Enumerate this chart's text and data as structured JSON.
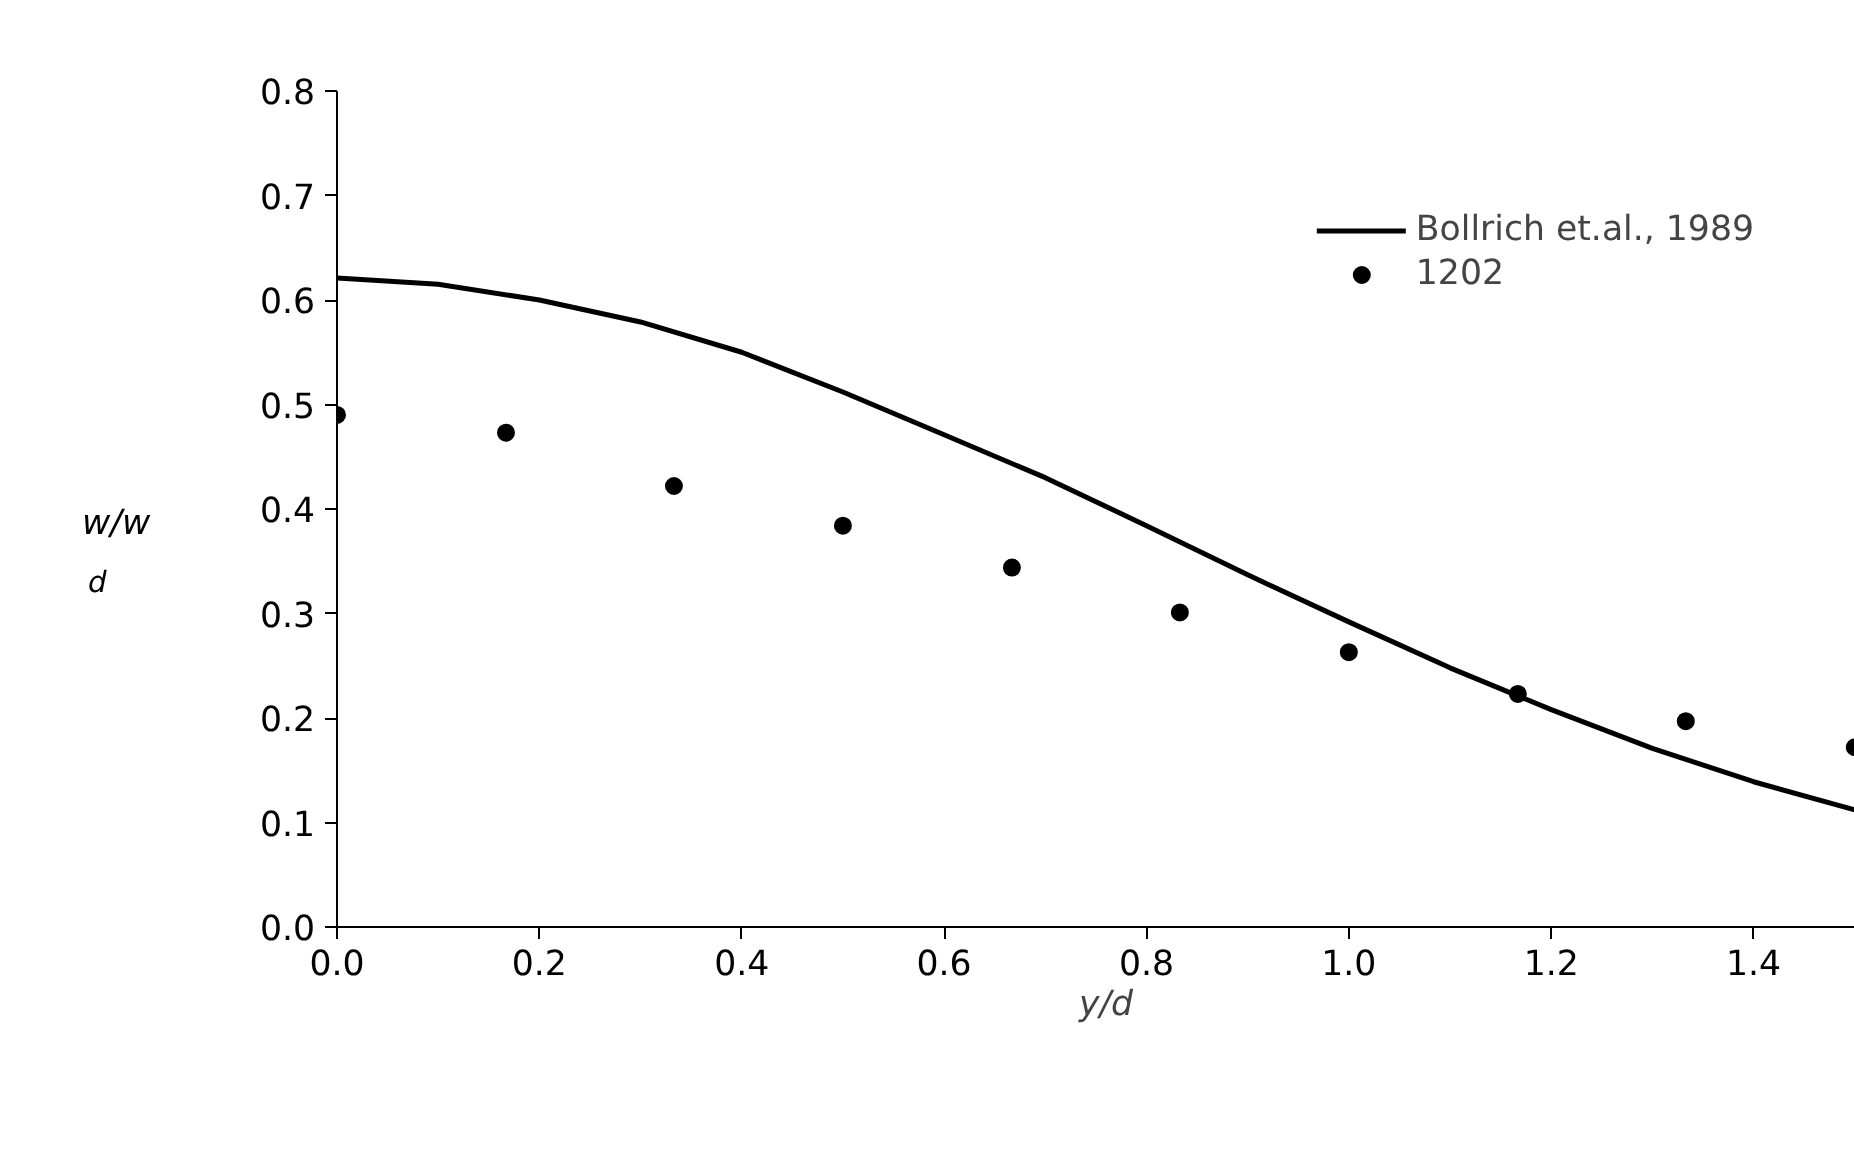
{
  "chart_data": {
    "type": "line",
    "xlabel": "y/d",
    "ylabel": "w/w$_{d}$",
    "xlim": [
      0,
      1.52
    ],
    "ylim": [
      0,
      0.8
    ],
    "xticks": [
      {
        "value": 0,
        "label": "0.0"
      },
      0.2,
      0.4,
      0.6,
      0.8,
      {
        "value": 1,
        "label": "1.0"
      },
      1.2,
      1.4
    ],
    "yticks": [
      {
        "value": 0,
        "label": "0.0"
      },
      0.1,
      0.2,
      0.3,
      0.4,
      0.5,
      0.6,
      0.7,
      0.8
    ],
    "grid": false,
    "legend": "top right",
    "series": [
      {
        "name": "Bollrich et.al., 1989",
        "color": "#000000",
        "line_style": "solid",
        "x": [
          0,
          0.1,
          0.2,
          0.3,
          0.4,
          0.5,
          0.6,
          0.7,
          0.8,
          0.9,
          1.0,
          1.1,
          1.2,
          1.3,
          1.4,
          1.5
        ],
        "values": [
          0.621,
          0.615,
          0.6,
          0.579,
          0.55,
          0.512,
          0.471,
          0.43,
          0.384,
          0.337,
          0.292,
          0.248,
          0.208,
          0.171,
          0.139,
          0.112
        ]
      },
      {
        "name": "1202",
        "type": "scatter",
        "color": "#000000",
        "marker": "circle",
        "x": [
          0,
          0.167,
          0.333,
          0.5,
          0.667,
          0.833,
          1.0,
          1.167,
          1.333,
          1.5
        ],
        "values": [
          0.49,
          0.473,
          0.422,
          0.384,
          0.344,
          0.301,
          0.263,
          0.223,
          0.197,
          0.172
        ]
      }
    ]
  }
}
